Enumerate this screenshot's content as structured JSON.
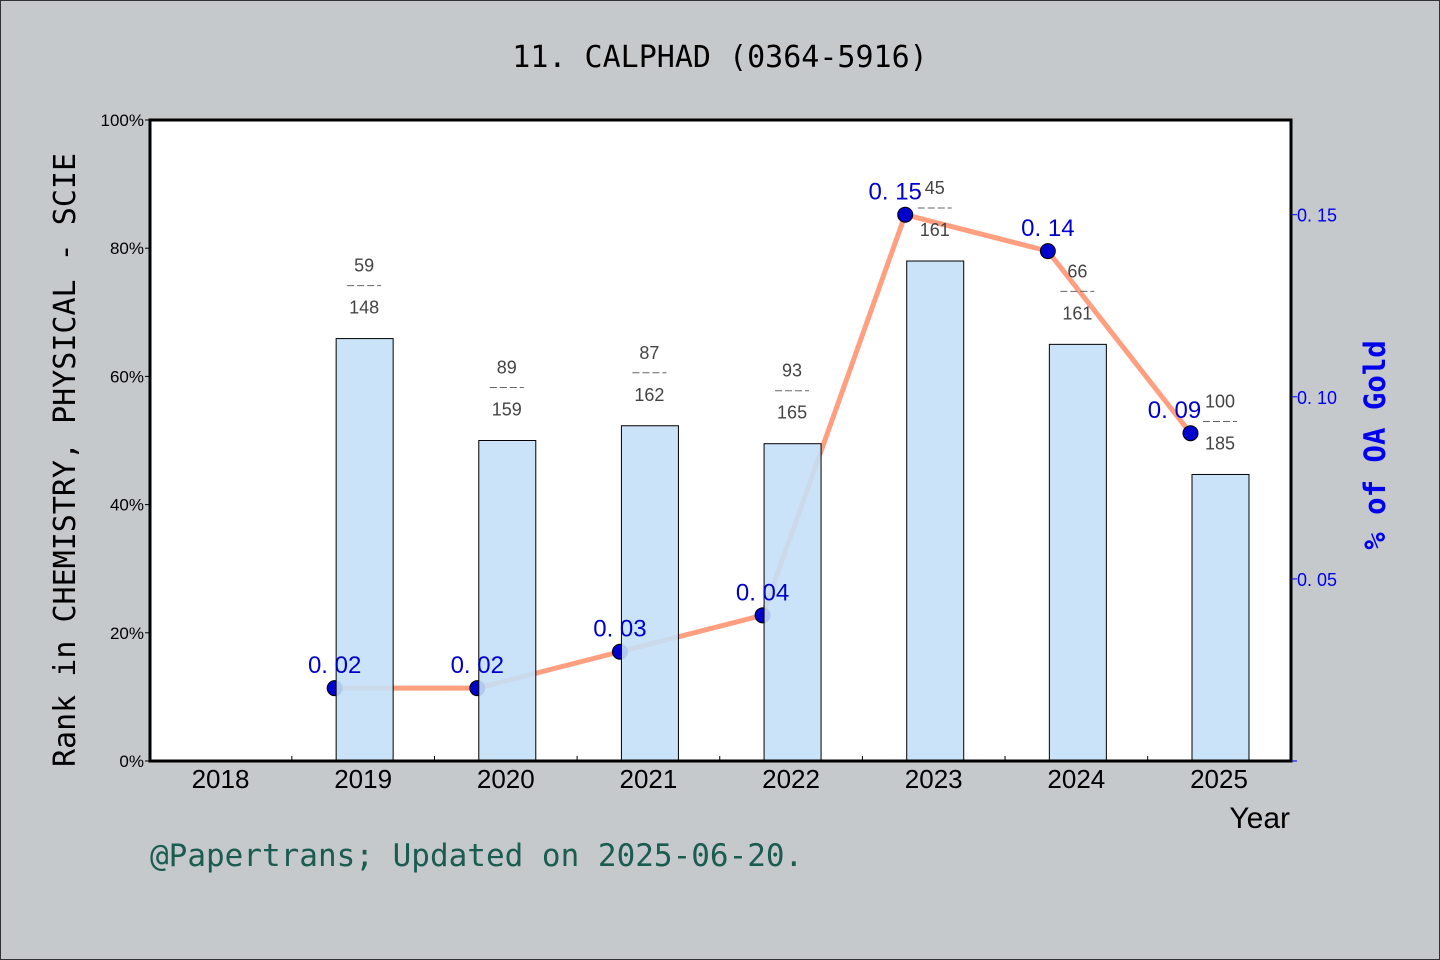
{
  "chart_data": {
    "type": "bar+line",
    "title": "11. CALPHAD (0364-5916)",
    "xlabel": "Year",
    "ylabel": "Rank in CHEMISTRY, PHYSICAL - SCIE",
    "y2label": "% of OA Gold",
    "categories": [
      "2018",
      "2019",
      "2020",
      "2021",
      "2022",
      "2023",
      "2024",
      "2025"
    ],
    "ylim": [
      0,
      100
    ],
    "yticks": [
      "0%",
      "20%",
      "40%",
      "60%",
      "80%",
      "100%"
    ],
    "y2lim": [
      0,
      0.176
    ],
    "y2ticks": [
      "0. 05",
      "0. 10",
      "0. 15"
    ],
    "y2tick_values": [
      0.05,
      0.1,
      0.15
    ],
    "bars": {
      "values": [
        null,
        65.9,
        50.0,
        52.3,
        49.5,
        78.0,
        65.0,
        44.7
      ],
      "rank": [
        null,
        "59",
        "89",
        "87",
        "93",
        "45",
        "66",
        "100"
      ],
      "total": [
        null,
        "148",
        "159",
        "162",
        "165",
        "161",
        "161",
        "185"
      ],
      "color": "#c5e0f7"
    },
    "line": {
      "values": [
        null,
        0.02,
        0.02,
        0.03,
        0.04,
        0.15,
        0.14,
        0.09
      ],
      "labels": [
        null,
        "0. 02",
        "0. 02",
        "0. 03",
        "0. 04",
        "0. 15",
        "0. 14",
        "0. 09"
      ],
      "color": "#ff9f7f",
      "marker_color": "#0000cc"
    },
    "grid": false
  },
  "footer": "@Papertrans; Updated on 2025-06-20."
}
